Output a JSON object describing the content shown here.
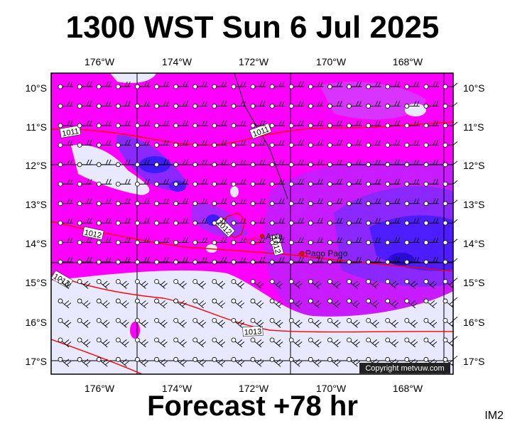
{
  "header": {
    "title": "1300 WST Sun 6 Jul 2025"
  },
  "footer": {
    "forecast": "Forecast +78 hr",
    "product_code": "IM2"
  },
  "map": {
    "lon_ticks": [
      "176°W",
      "174°W",
      "172°W",
      "170°W",
      "168°W"
    ],
    "lat_ticks": [
      "10°S",
      "11°S",
      "12°S",
      "13°S",
      "14°S",
      "15°S",
      "16°S",
      "17°S"
    ],
    "isobar_labels": [
      "1011",
      "1011",
      "1012",
      "1012",
      "1012",
      "1013",
      "1013"
    ],
    "place_labels": [
      "Apia",
      "Pago Pago"
    ],
    "copyright": "Copyright metvuw.com",
    "colors": {
      "background_field": "#ff00ff",
      "light_field": "#e8e8ff",
      "blue_field": "#3a1cff",
      "isobar": "#ff0000",
      "frame": "#000000"
    }
  }
}
